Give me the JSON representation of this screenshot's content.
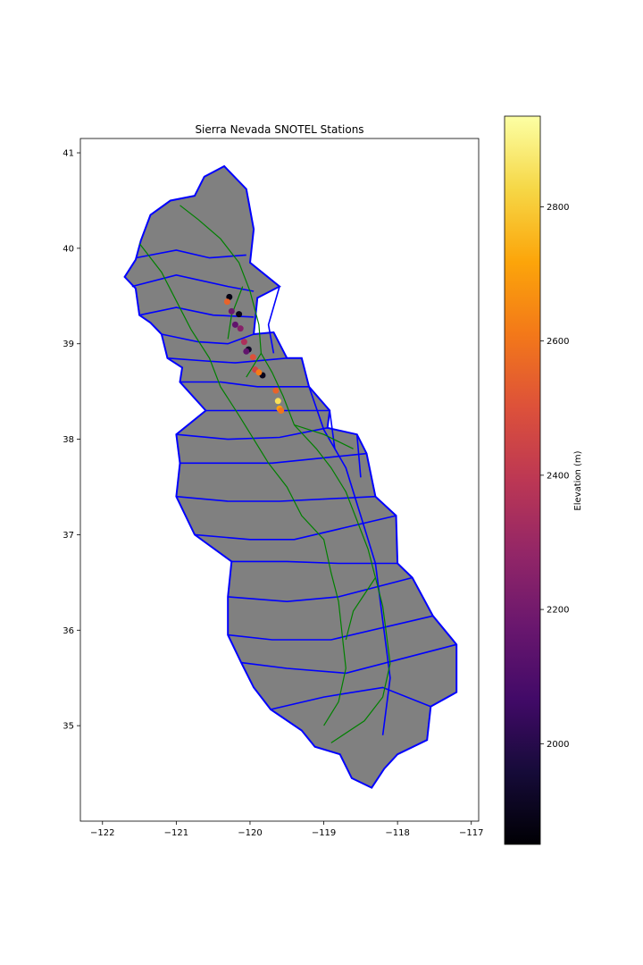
{
  "chart_data": {
    "type": "scatter",
    "title": "Sierra Nevada SNOTEL Stations",
    "xlabel": "",
    "ylabel": "",
    "xlim": [
      -122.3,
      -116.9
    ],
    "ylim": [
      34.0,
      41.15
    ],
    "x_ticks": [
      -122,
      -121,
      -120,
      -119,
      -118,
      -117
    ],
    "x_tick_labels": [
      "−122",
      "−121",
      "−120",
      "−119",
      "−118",
      "−117"
    ],
    "y_ticks": [
      35,
      36,
      37,
      38,
      39,
      40,
      41
    ],
    "y_tick_labels": [
      "35",
      "36",
      "37",
      "38",
      "39",
      "40",
      "41"
    ],
    "grid": false,
    "basemap": {
      "fill_color": "#808080",
      "basin_edge_color": "#0000ff",
      "river_color": "#008000",
      "outline_lonlat": [
        [
          -120.62,
          40.75
        ],
        [
          -120.35,
          40.86
        ],
        [
          -120.05,
          40.62
        ],
        [
          -119.95,
          40.2
        ],
        [
          -120.0,
          39.85
        ],
        [
          -119.6,
          39.6
        ],
        [
          -119.9,
          39.48
        ],
        [
          -119.95,
          39.1
        ],
        [
          -119.68,
          39.12
        ],
        [
          -119.5,
          38.85
        ],
        [
          -119.3,
          38.85
        ],
        [
          -119.2,
          38.55
        ],
        [
          -118.92,
          38.3
        ],
        [
          -118.95,
          38.12
        ],
        [
          -118.55,
          38.05
        ],
        [
          -118.42,
          37.85
        ],
        [
          -118.3,
          37.4
        ],
        [
          -118.02,
          37.2
        ],
        [
          -118.0,
          36.7
        ],
        [
          -117.8,
          36.55
        ],
        [
          -117.52,
          36.15
        ],
        [
          -117.2,
          35.85
        ],
        [
          -117.2,
          35.35
        ],
        [
          -117.55,
          35.2
        ],
        [
          -117.6,
          34.85
        ],
        [
          -118.0,
          34.7
        ],
        [
          -118.18,
          34.55
        ],
        [
          -118.35,
          34.35
        ],
        [
          -118.62,
          34.45
        ],
        [
          -118.78,
          34.7
        ],
        [
          -119.12,
          34.78
        ],
        [
          -119.3,
          34.95
        ],
        [
          -119.72,
          35.17
        ],
        [
          -119.95,
          35.4
        ],
        [
          -120.12,
          35.66
        ],
        [
          -120.3,
          35.95
        ],
        [
          -120.3,
          36.35
        ],
        [
          -120.25,
          36.72
        ],
        [
          -120.75,
          37.0
        ],
        [
          -121.0,
          37.4
        ],
        [
          -120.95,
          37.75
        ],
        [
          -121.0,
          38.05
        ],
        [
          -120.6,
          38.3
        ],
        [
          -120.95,
          38.6
        ],
        [
          -120.92,
          38.75
        ],
        [
          -121.12,
          38.85
        ],
        [
          -121.2,
          39.1
        ],
        [
          -121.35,
          39.22
        ],
        [
          -121.5,
          39.3
        ],
        [
          -121.55,
          39.58
        ],
        [
          -121.7,
          39.7
        ],
        [
          -121.55,
          39.88
        ],
        [
          -121.48,
          40.08
        ],
        [
          -121.35,
          40.35
        ],
        [
          -121.08,
          40.5
        ],
        [
          -120.75,
          40.55
        ]
      ],
      "basin_lines_lonlat": [
        [
          [
            -121.55,
            39.9
          ],
          [
            -121.0,
            39.98
          ],
          [
            -120.55,
            39.9
          ],
          [
            -120.05,
            39.93
          ]
        ],
        [
          [
            -121.6,
            39.6
          ],
          [
            -121.0,
            39.72
          ],
          [
            -120.3,
            39.6
          ],
          [
            -119.95,
            39.55
          ]
        ],
        [
          [
            -121.5,
            39.3
          ],
          [
            -121.0,
            39.38
          ],
          [
            -120.5,
            39.3
          ],
          [
            -119.95,
            39.28
          ]
        ],
        [
          [
            -121.2,
            39.1
          ],
          [
            -120.7,
            39.02
          ],
          [
            -120.3,
            39.0
          ],
          [
            -119.95,
            39.1
          ]
        ],
        [
          [
            -121.12,
            38.85
          ],
          [
            -120.6,
            38.82
          ],
          [
            -120.2,
            38.8
          ],
          [
            -119.5,
            38.85
          ]
        ],
        [
          [
            -120.95,
            38.6
          ],
          [
            -120.4,
            38.6
          ],
          [
            -119.9,
            38.55
          ],
          [
            -119.2,
            38.55
          ]
        ],
        [
          [
            -120.6,
            38.3
          ],
          [
            -120.0,
            38.3
          ],
          [
            -119.6,
            38.3
          ],
          [
            -118.92,
            38.3
          ]
        ],
        [
          [
            -121.0,
            38.05
          ],
          [
            -120.3,
            38.0
          ],
          [
            -119.6,
            38.02
          ],
          [
            -118.95,
            38.12
          ]
        ],
        [
          [
            -120.95,
            37.75
          ],
          [
            -120.3,
            37.75
          ],
          [
            -119.7,
            37.75
          ],
          [
            -118.42,
            37.85
          ]
        ],
        [
          [
            -121.0,
            37.4
          ],
          [
            -120.3,
            37.35
          ],
          [
            -119.6,
            37.35
          ],
          [
            -118.3,
            37.4
          ]
        ],
        [
          [
            -120.75,
            37.0
          ],
          [
            -120.0,
            36.95
          ],
          [
            -119.4,
            36.95
          ],
          [
            -118.02,
            37.2
          ]
        ],
        [
          [
            -120.25,
            36.72
          ],
          [
            -119.5,
            36.72
          ],
          [
            -118.8,
            36.7
          ],
          [
            -118.0,
            36.7
          ]
        ],
        [
          [
            -120.3,
            36.35
          ],
          [
            -119.5,
            36.3
          ],
          [
            -118.8,
            36.35
          ],
          [
            -117.8,
            36.55
          ]
        ],
        [
          [
            -120.3,
            35.95
          ],
          [
            -119.7,
            35.9
          ],
          [
            -118.9,
            35.9
          ],
          [
            -117.52,
            36.15
          ]
        ],
        [
          [
            -120.12,
            35.66
          ],
          [
            -119.5,
            35.6
          ],
          [
            -118.7,
            35.55
          ],
          [
            -117.2,
            35.85
          ]
        ],
        [
          [
            -119.72,
            35.17
          ],
          [
            -119.0,
            35.3
          ],
          [
            -118.2,
            35.4
          ],
          [
            -117.55,
            35.2
          ]
        ],
        [
          [
            -119.6,
            39.6
          ],
          [
            -119.75,
            39.2
          ],
          [
            -119.68,
            38.9
          ]
        ],
        [
          [
            -119.2,
            38.55
          ],
          [
            -119.0,
            38.1
          ],
          [
            -118.7,
            37.7
          ],
          [
            -118.5,
            37.2
          ],
          [
            -118.3,
            36.7
          ],
          [
            -118.2,
            36.1
          ],
          [
            -118.1,
            35.5
          ],
          [
            -118.2,
            34.9
          ]
        ],
        [
          [
            -118.92,
            38.3
          ],
          [
            -118.85,
            37.9
          ]
        ],
        [
          [
            -118.55,
            38.05
          ],
          [
            -118.5,
            37.6
          ]
        ]
      ],
      "rivers_lonlat": [
        [
          [
            -120.95,
            40.45
          ],
          [
            -120.7,
            40.3
          ],
          [
            -120.4,
            40.1
          ],
          [
            -120.15,
            39.85
          ],
          [
            -120.0,
            39.55
          ],
          [
            -119.88,
            39.2
          ],
          [
            -119.85,
            38.9
          ],
          [
            -119.7,
            38.7
          ],
          [
            -119.55,
            38.45
          ],
          [
            -119.4,
            38.15
          ],
          [
            -119.1,
            37.9
          ],
          [
            -118.9,
            37.7
          ],
          [
            -118.7,
            37.45
          ],
          [
            -118.55,
            37.15
          ],
          [
            -118.4,
            36.85
          ],
          [
            -118.3,
            36.55
          ],
          [
            -118.2,
            36.25
          ],
          [
            -118.15,
            35.95
          ],
          [
            -118.1,
            35.65
          ],
          [
            -118.2,
            35.3
          ],
          [
            -118.45,
            35.05
          ],
          [
            -118.9,
            34.82
          ]
        ],
        [
          [
            -121.5,
            40.05
          ],
          [
            -121.2,
            39.75
          ],
          [
            -121.0,
            39.45
          ],
          [
            -120.8,
            39.15
          ],
          [
            -120.55,
            38.85
          ],
          [
            -120.4,
            38.55
          ],
          [
            -120.15,
            38.25
          ],
          [
            -119.95,
            38.0
          ],
          [
            -119.75,
            37.75
          ],
          [
            -119.5,
            37.5
          ],
          [
            -119.3,
            37.2
          ],
          [
            -119.0,
            36.95
          ],
          [
            -118.9,
            36.6
          ],
          [
            -118.8,
            36.3
          ],
          [
            -118.75,
            35.95
          ],
          [
            -118.7,
            35.6
          ],
          [
            -118.8,
            35.25
          ],
          [
            -119.0,
            35.0
          ]
        ],
        [
          [
            -120.1,
            39.6
          ],
          [
            -120.25,
            39.3
          ],
          [
            -120.3,
            39.05
          ]
        ],
        [
          [
            -119.85,
            38.9
          ],
          [
            -120.05,
            38.65
          ]
        ],
        [
          [
            -119.4,
            38.15
          ],
          [
            -119.0,
            38.05
          ],
          [
            -118.6,
            37.9
          ]
        ],
        [
          [
            -118.3,
            36.55
          ],
          [
            -118.6,
            36.2
          ],
          [
            -118.7,
            35.9
          ]
        ]
      ]
    },
    "colorbar": {
      "label": "Elevation (m)",
      "colormap": "inferno",
      "vmin": 1850,
      "vmax": 2935,
      "ticks": [
        2000,
        2200,
        2400,
        2600,
        2800
      ],
      "tick_labels": [
        "2000",
        "2200",
        "2400",
        "2600",
        "2800"
      ]
    },
    "stations": [
      {
        "lon": -120.28,
        "lat": 39.49,
        "elev": 1880
      },
      {
        "lon": -120.15,
        "lat": 39.31,
        "elev": 1900
      },
      {
        "lon": -120.02,
        "lat": 38.94,
        "elev": 1920
      },
      {
        "lon": -119.83,
        "lat": 38.67,
        "elev": 1900
      },
      {
        "lon": -120.31,
        "lat": 39.44,
        "elev": 2550
      },
      {
        "lon": -120.25,
        "lat": 39.34,
        "elev": 2180
      },
      {
        "lon": -120.2,
        "lat": 39.2,
        "elev": 2150
      },
      {
        "lon": -120.13,
        "lat": 39.16,
        "elev": 2250
      },
      {
        "lon": -120.08,
        "lat": 39.02,
        "elev": 2350
      },
      {
        "lon": -120.05,
        "lat": 38.92,
        "elev": 2150
      },
      {
        "lon": -119.96,
        "lat": 38.86,
        "elev": 2500
      },
      {
        "lon": -119.93,
        "lat": 38.73,
        "elev": 2450
      },
      {
        "lon": -119.88,
        "lat": 38.7,
        "elev": 2620
      },
      {
        "lon": -119.65,
        "lat": 38.51,
        "elev": 2550
      },
      {
        "lon": -119.62,
        "lat": 38.4,
        "elev": 2850
      },
      {
        "lon": -119.6,
        "lat": 38.32,
        "elev": 2700
      },
      {
        "lon": -119.58,
        "lat": 38.3,
        "elev": 2600
      }
    ]
  }
}
